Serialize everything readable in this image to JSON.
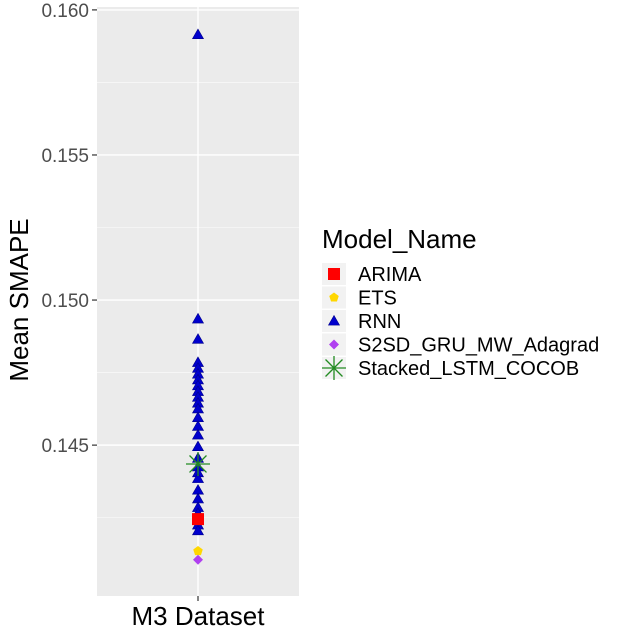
{
  "chart_data": {
    "type": "scatter",
    "xlabel": "",
    "ylabel": "Mean SMAPE",
    "categories": [
      "M3 Dataset"
    ],
    "ylim": [
      0.1398,
      0.1601
    ],
    "yticks": [
      0.145,
      0.15,
      0.155,
      0.16
    ],
    "ytick_labels": [
      "0.145",
      "0.150",
      "0.155",
      "0.160"
    ],
    "grid": true,
    "legend_title": "Model_Name",
    "legend_position": "right",
    "series": [
      {
        "name": "ARIMA",
        "color": "#ff0000",
        "shape": "square",
        "values": [
          0.14245
        ]
      },
      {
        "name": "ETS",
        "color": "#ffd700",
        "shape": "pentagon",
        "values": [
          0.14135
        ]
      },
      {
        "name": "RNN",
        "color": "#0000cd",
        "shape": "triangle",
        "values": [
          0.15915,
          0.14935,
          0.14865,
          0.14785,
          0.14765,
          0.14745,
          0.14725,
          0.14705,
          0.14685,
          0.14665,
          0.14645,
          0.14625,
          0.14595,
          0.14565,
          0.14535,
          0.14495,
          0.14455,
          0.14425,
          0.14405,
          0.14385,
          0.14345,
          0.14315,
          0.14285,
          0.14265,
          0.14225,
          0.14205
        ]
      },
      {
        "name": "S2SD_GRU_MW_Adagrad",
        "color": "#b040f0",
        "shape": "diamond",
        "values": [
          0.14105
        ]
      },
      {
        "name": "Stacked_LSTM_COCOB",
        "color": "#228b22",
        "shape": "asterisk",
        "values": [
          0.14435
        ]
      }
    ]
  }
}
